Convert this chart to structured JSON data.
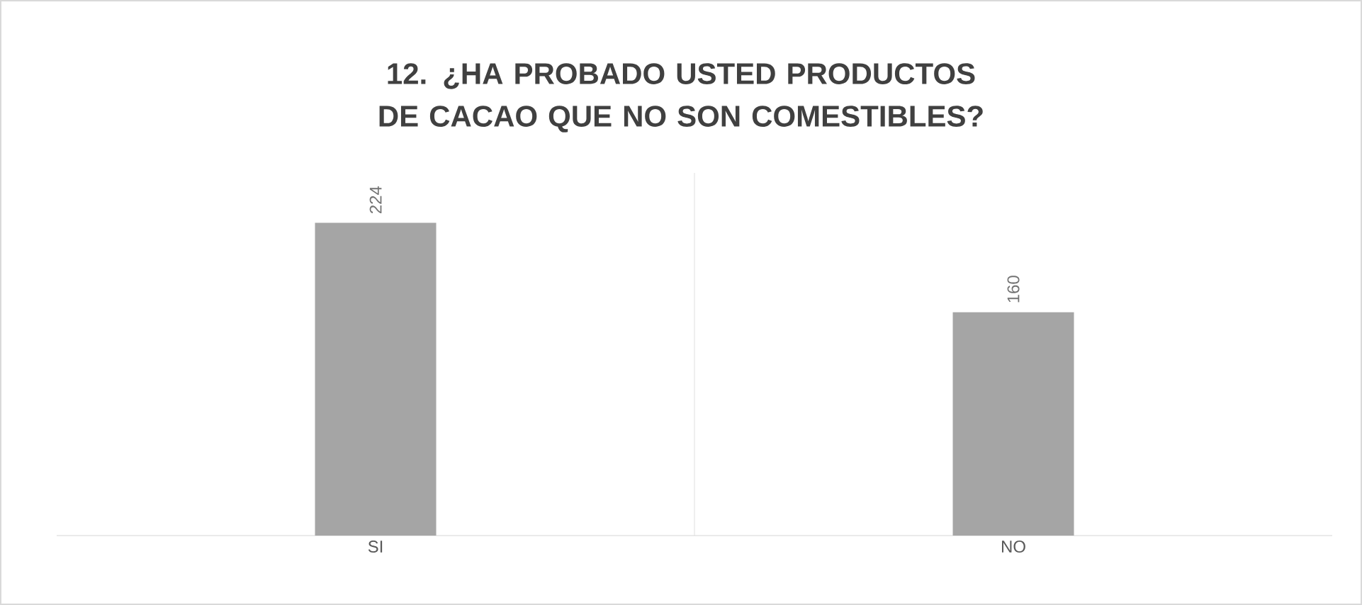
{
  "chart_data": {
    "type": "bar",
    "title": "12. ¿HA PROBADO USTED PRODUCTOS DE CACAO QUE NO SON COMESTIBLES?",
    "categories": [
      "SI",
      "NO"
    ],
    "values": [
      224,
      160
    ],
    "color": "#a5a5a5",
    "data_labels": true,
    "grid": "x"
  }
}
